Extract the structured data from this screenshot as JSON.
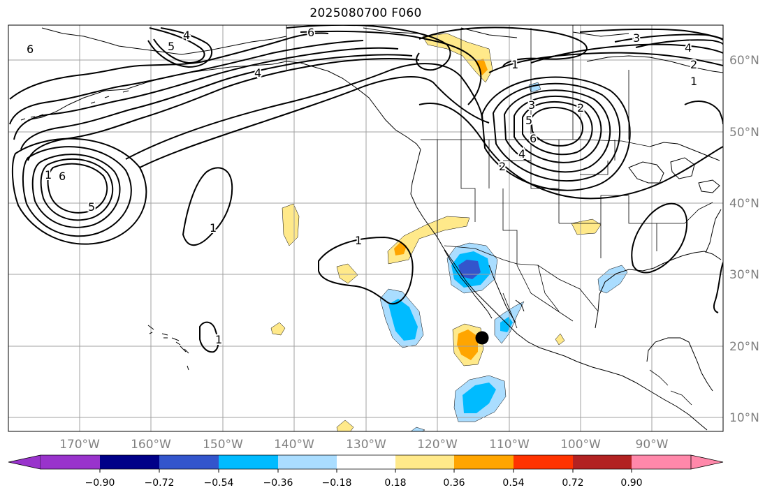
{
  "title": "2025080700 F060",
  "longitude_labels": [
    "170°W",
    "160°W",
    "150°W",
    "140°W",
    "130°W",
    "120°W",
    "110°W",
    "100°W",
    "90°W"
  ],
  "latitude_labels": [
    "60°N",
    "50°N",
    "40°N",
    "30°N",
    "20°N",
    "10°N"
  ],
  "colorbar": {
    "tick_labels": [
      "−0.90",
      "−0.72",
      "−0.54",
      "−0.36",
      "−0.18",
      "0.18",
      "0.36",
      "0.54",
      "0.72",
      "0.90"
    ],
    "colors": {
      "under": "#9933cc",
      "bins": [
        "#000088",
        "#3355cc",
        "#00bbff",
        "#aaddff",
        "#ffffff",
        "#ffe98a",
        "#ffa500",
        "#ff3300",
        "#b22222"
      ],
      "over": "#ff88aa"
    }
  },
  "contour_labels": {
    "alaska_6": "6",
    "gulf_4": "4",
    "bering_4": "4",
    "bering_5": "5",
    "ak_coast_6": "6",
    "canada_3": "3",
    "canada_4": "4",
    "canada_2": "2",
    "canada_1": "1",
    "mt_3": "3",
    "mt_5": "5",
    "mt_6": "6",
    "mt_4": "4",
    "mt_2": "2",
    "mt_2b": "2",
    "west_1": "1",
    "west_6": "6",
    "west_5": "5",
    "pacific_1": "1",
    "baja_1": "1",
    "hawaii_1": "1",
    "hudson_1": "1"
  },
  "map_features": [
    "graticule",
    "coastlines",
    "us-state-borders",
    "canada-province-borders",
    "mexico-border"
  ],
  "marker": {
    "type": "storm-center-dot",
    "color": "#000000"
  }
}
